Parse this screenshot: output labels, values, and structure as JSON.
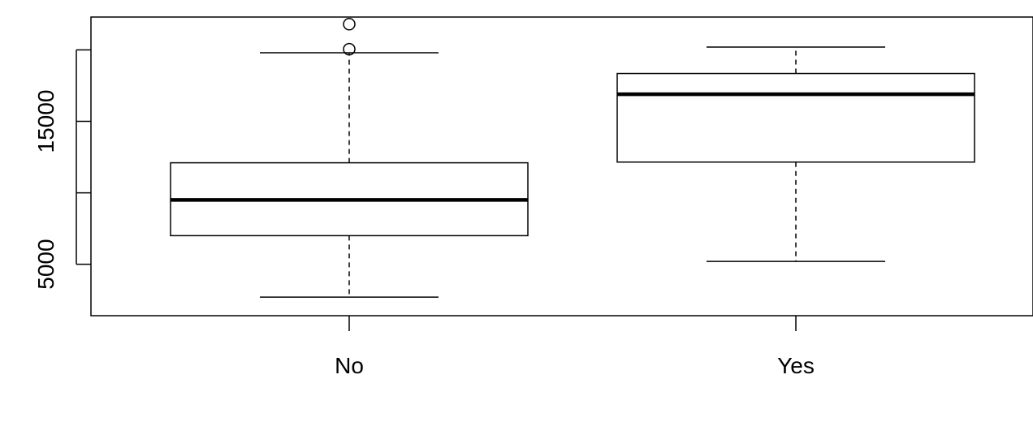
{
  "chart_data": {
    "type": "boxplot",
    "title": "",
    "xlabel": "",
    "ylabel": "",
    "categories": [
      "No",
      "Yes"
    ],
    "y_ticks": [
      5000,
      15000
    ],
    "y_minor_ticks": [
      5000,
      10000,
      15000,
      20000
    ],
    "ylim": [
      1400,
      22300
    ],
    "boxes": [
      {
        "category": "No",
        "whisker_low": 2700,
        "q1": 7000,
        "median": 9500,
        "q3": 12100,
        "whisker_high": 19800,
        "outliers": [
          20050,
          21800
        ]
      },
      {
        "category": "Yes",
        "whisker_low": 5200,
        "q1": 12150,
        "median": 16900,
        "q3": 18350,
        "whisker_high": 20200,
        "outliers": []
      }
    ],
    "grid": false,
    "legend": "none"
  }
}
